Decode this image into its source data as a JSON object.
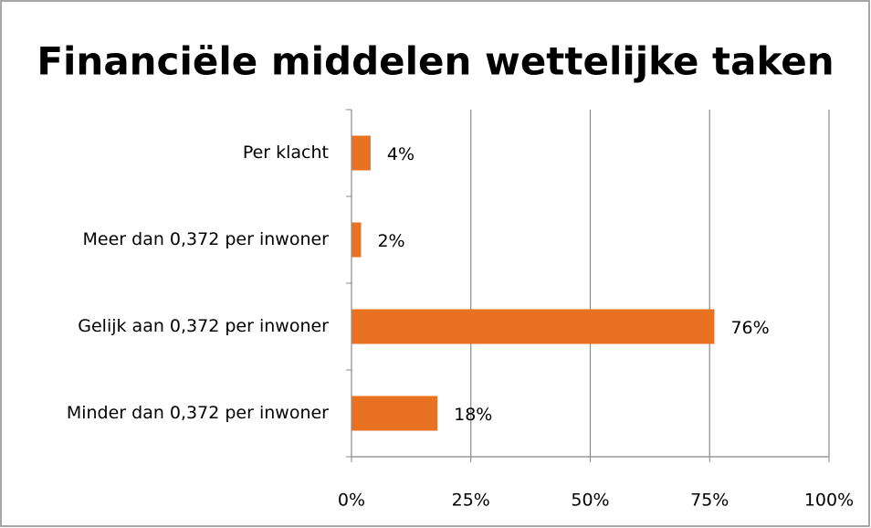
{
  "chart_data": {
    "type": "hbar",
    "title": "Financiële middelen wettelijke taken",
    "categories": [
      "Per klacht",
      "Meer dan 0,372 per inwoner",
      "Gelijk aan 0,372 per inwoner",
      "Minder dan 0,372 per inwoner"
    ],
    "values": [
      4,
      2,
      76,
      18
    ],
    "value_labels": [
      "4%",
      "2%",
      "76%",
      "18%"
    ],
    "color": "#e87122",
    "xlim": [
      0,
      100
    ],
    "xticks": [
      {
        "value": 0,
        "label": "0%"
      },
      {
        "value": 25,
        "label": "25%"
      },
      {
        "value": 50,
        "label": "50%"
      },
      {
        "value": 75,
        "label": "75%"
      },
      {
        "value": 100,
        "label": "100%"
      }
    ],
    "grid": true
  }
}
